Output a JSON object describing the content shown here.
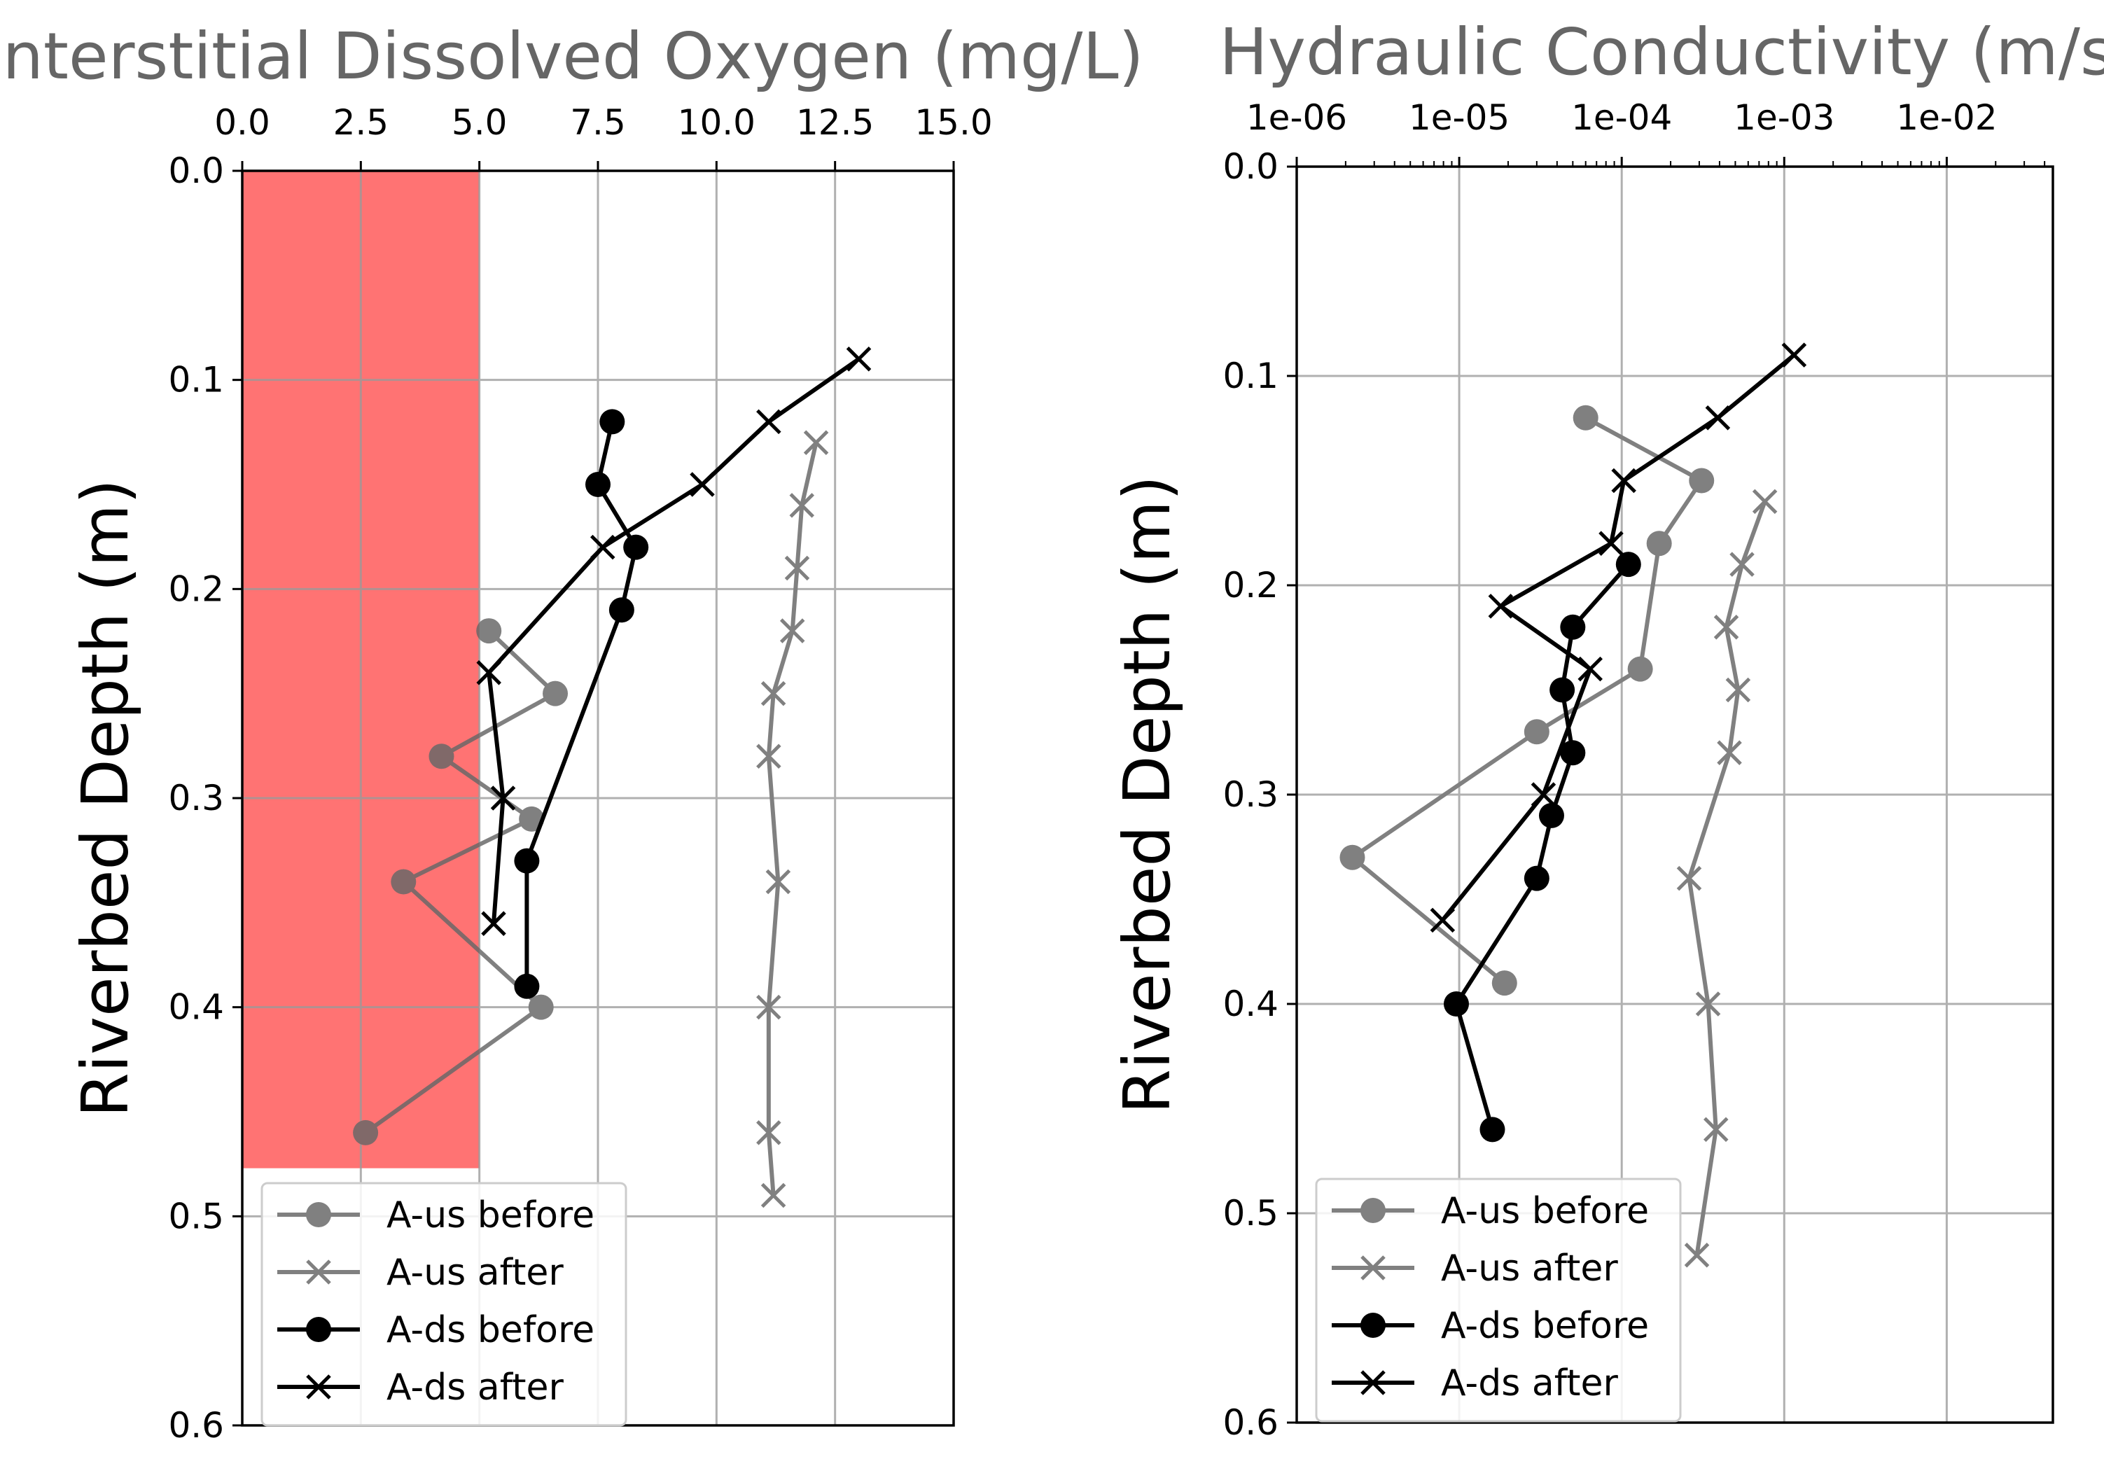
{
  "chart_data": [
    {
      "type": "line",
      "title": "Interstitial Dissolved Oxygen (mg/L)",
      "xlabel": "",
      "ylabel": "Riverbed Depth (m)",
      "x_axis_position": "top",
      "x_scale": "linear",
      "xlim": [
        0,
        15
      ],
      "x_ticks": [
        "0.0",
        "2.5",
        "5.0",
        "7.5",
        "10.0",
        "12.5",
        "15.0"
      ],
      "x_tick_values": [
        0,
        2.5,
        5,
        7.5,
        10,
        12.5,
        15
      ],
      "ylim": [
        0.6,
        0
      ],
      "y_inverted": true,
      "y_ticks": [
        "0.0",
        "0.1",
        "0.2",
        "0.3",
        "0.4",
        "0.5",
        "0.6"
      ],
      "y_tick_values": [
        0,
        0.1,
        0.2,
        0.3,
        0.4,
        0.5,
        0.6
      ],
      "grid": true,
      "legend_position": "lower-left",
      "shaded_region": {
        "x": [
          0,
          5
        ],
        "y": [
          0,
          0.477
        ],
        "color": "#ff8080"
      },
      "series": [
        {
          "name": "A-us before",
          "marker": "circle",
          "color": "#808080",
          "points": [
            [
              5.2,
              0.22
            ],
            [
              6.6,
              0.25
            ],
            [
              4.2,
              0.28
            ],
            [
              6.1,
              0.31
            ],
            [
              3.4,
              0.34
            ],
            [
              6.3,
              0.4
            ],
            [
              2.6,
              0.46
            ]
          ]
        },
        {
          "name": "A-us after",
          "marker": "x",
          "color": "#808080",
          "points": [
            [
              12.1,
              0.13
            ],
            [
              11.8,
              0.16
            ],
            [
              11.7,
              0.19
            ],
            [
              11.6,
              0.22
            ],
            [
              11.2,
              0.25
            ],
            [
              11.1,
              0.28
            ],
            [
              11.3,
              0.34
            ],
            [
              11.1,
              0.4
            ],
            [
              11.1,
              0.46
            ],
            [
              11.2,
              0.49
            ]
          ]
        },
        {
          "name": "A-ds before",
          "marker": "circle",
          "color": "#000000",
          "points": [
            [
              7.8,
              0.12
            ],
            [
              7.5,
              0.15
            ],
            [
              8.3,
              0.18
            ],
            [
              8.0,
              0.21
            ],
            [
              6.0,
              0.33
            ],
            [
              6.0,
              0.39
            ]
          ]
        },
        {
          "name": "A-ds after",
          "marker": "x",
          "color": "#000000",
          "points": [
            [
              13.0,
              0.09
            ],
            [
              11.1,
              0.12
            ],
            [
              9.7,
              0.15
            ],
            [
              7.6,
              0.18
            ],
            [
              5.2,
              0.24
            ],
            [
              5.5,
              0.3
            ],
            [
              5.3,
              0.36
            ]
          ]
        }
      ]
    },
    {
      "type": "line",
      "title": "Hydraulic Conductivity (m/s)",
      "xlabel": "",
      "ylabel": "Riverbed Depth (m)",
      "x_axis_position": "top",
      "x_scale": "log",
      "xlim": [
        1e-06,
        0.045
      ],
      "x_ticks": [
        "1e-06",
        "1e-05",
        "1e-04",
        "1e-03",
        "1e-02"
      ],
      "x_tick_values": [
        1e-06,
        1e-05,
        0.0001,
        0.001,
        0.01
      ],
      "ylim": [
        0.6,
        0
      ],
      "y_inverted": true,
      "y_ticks": [
        "0.0",
        "0.1",
        "0.2",
        "0.3",
        "0.4",
        "0.5",
        "0.6"
      ],
      "y_tick_values": [
        0,
        0.1,
        0.2,
        0.3,
        0.4,
        0.5,
        0.6
      ],
      "grid": true,
      "legend_position": "lower-left",
      "series": [
        {
          "name": "A-us before",
          "marker": "circle",
          "color": "#808080",
          "points": [
            [
              6e-05,
              0.12
            ],
            [
              0.00031,
              0.15
            ],
            [
              0.00017,
              0.18
            ],
            [
              0.00013,
              0.24
            ],
            [
              3e-05,
              0.27
            ],
            [
              2.2e-06,
              0.33
            ],
            [
              1.9e-05,
              0.39
            ]
          ]
        },
        {
          "name": "A-us after",
          "marker": "x",
          "color": "#808080",
          "points": [
            [
              0.00076,
              0.16
            ],
            [
              0.00055,
              0.19
            ],
            [
              0.00044,
              0.22
            ],
            [
              0.00052,
              0.25
            ],
            [
              0.00046,
              0.28
            ],
            [
              0.00026,
              0.34
            ],
            [
              0.00034,
              0.4
            ],
            [
              0.00038,
              0.46
            ],
            [
              0.00029,
              0.52
            ]
          ]
        },
        {
          "name": "A-ds before",
          "marker": "circle",
          "color": "#000000",
          "points": [
            [
              0.00011,
              0.19
            ],
            [
              5e-05,
              0.22
            ],
            [
              4.3e-05,
              0.25
            ],
            [
              5e-05,
              0.28
            ],
            [
              3.7e-05,
              0.31
            ],
            [
              3e-05,
              0.34
            ],
            [
              9.6e-06,
              0.4
            ],
            [
              1.6e-05,
              0.46
            ]
          ]
        },
        {
          "name": "A-ds after",
          "marker": "x",
          "color": "#000000",
          "points": [
            [
              0.00115,
              0.09
            ],
            [
              0.00039,
              0.12
            ],
            [
              0.000103,
              0.15
            ],
            [
              8.6e-05,
              0.18
            ],
            [
              1.8e-05,
              0.21
            ],
            [
              6.4e-05,
              0.24
            ],
            [
              3.3e-05,
              0.3
            ],
            [
              7.9e-06,
              0.36
            ]
          ]
        }
      ]
    }
  ]
}
